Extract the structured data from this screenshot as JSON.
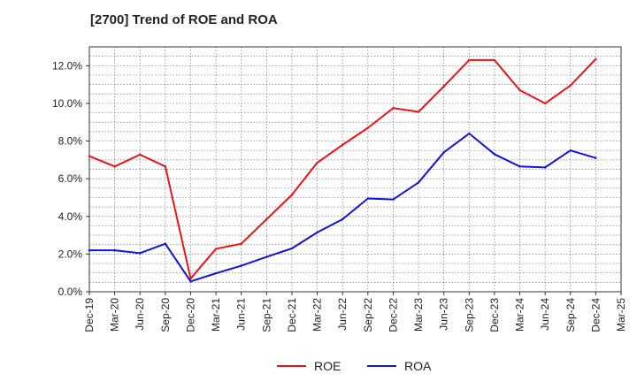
{
  "chart_data": {
    "type": "line",
    "title": "[2700]  Trend of ROE and ROA",
    "x": [
      "Dec-19",
      "Mar-20",
      "Jun-20",
      "Sep-20",
      "Dec-20",
      "Mar-21",
      "Jun-21",
      "Sep-21",
      "Dec-21",
      "Mar-22",
      "Jun-22",
      "Sep-22",
      "Dec-22",
      "Mar-23",
      "Jun-23",
      "Sep-23",
      "Dec-23",
      "Mar-24",
      "Jun-24",
      "Sep-24",
      "Dec-24",
      "Mar-25"
    ],
    "series": [
      {
        "name": "ROE",
        "color": "#e8141a",
        "values": [
          7.2,
          6.65,
          7.28,
          6.65,
          0.7,
          2.28,
          2.55,
          3.85,
          5.15,
          6.85,
          7.8,
          8.7,
          9.75,
          9.55,
          10.9,
          12.3,
          12.3,
          10.7,
          10.0,
          10.95,
          12.35,
          null
        ]
      },
      {
        "name": "ROA",
        "color": "#1414d6",
        "values": [
          2.2,
          2.2,
          2.05,
          2.55,
          0.55,
          0.98,
          1.38,
          1.85,
          2.3,
          3.15,
          3.85,
          4.95,
          4.9,
          5.8,
          7.4,
          8.4,
          7.3,
          6.65,
          6.6,
          7.5,
          7.1,
          null
        ]
      }
    ],
    "yticks": [
      "0.0%",
      "2.0%",
      "4.0%",
      "6.0%",
      "8.0%",
      "10.0%",
      "12.0%"
    ],
    "ylim": [
      0,
      13
    ],
    "grid": true,
    "legend": "bottom-center"
  }
}
